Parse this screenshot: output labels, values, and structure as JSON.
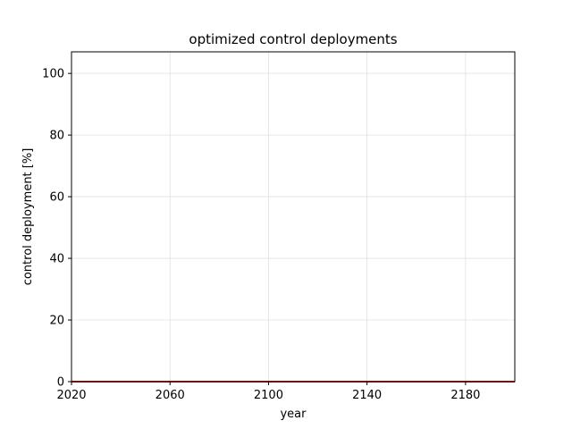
{
  "chart_data": {
    "type": "line",
    "title": "optimized control deployments",
    "xlabel": "year",
    "ylabel": "control deployment [%]",
    "xlim": [
      2020,
      2200
    ],
    "ylim": [
      0,
      107
    ],
    "xticks": [
      2020,
      2060,
      2100,
      2140,
      2180
    ],
    "yticks": [
      0,
      20,
      40,
      60,
      80,
      100
    ],
    "grid": true,
    "legend": "none",
    "series": [
      {
        "color": "#d62728",
        "x": [
          2020,
          2200
        ],
        "y": [
          0,
          0
        ]
      },
      {
        "color": "#2b2b2b",
        "x": [
          2020,
          2200
        ],
        "y": [
          0,
          0
        ]
      }
    ]
  },
  "colors": {
    "axes": "#000000",
    "grid": "#e0e0e0",
    "background": "#ffffff"
  }
}
